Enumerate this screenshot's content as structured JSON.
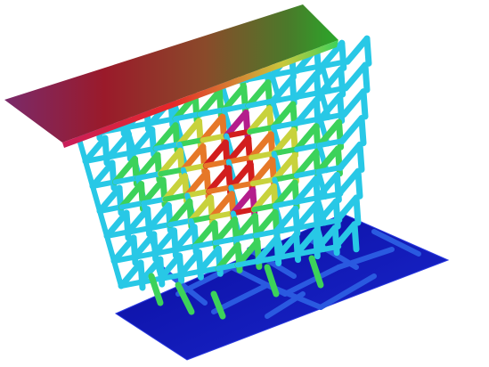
{
  "scene": {
    "subject": "lattice-structure-render",
    "colormap": [
      "#1a1aa0",
      "#1e5ad2",
      "#28c8e6",
      "#3cd25a",
      "#c8d23c",
      "#e67828",
      "#d21e1e",
      "#b41e8c"
    ],
    "background": "#ffffff"
  }
}
